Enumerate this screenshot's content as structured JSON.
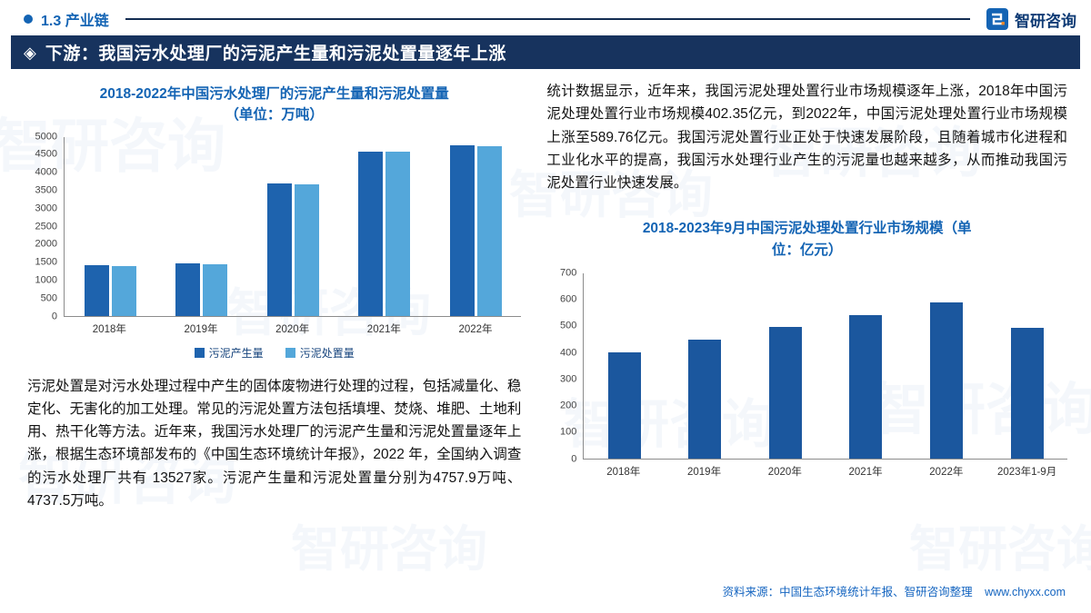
{
  "header": {
    "section": "1.3 产业链",
    "logo_text": "智研咨询"
  },
  "banner": {
    "icon": "◈",
    "title": "下游：我国污水处理厂的污泥产生量和污泥处置量逐年上涨"
  },
  "left": {
    "paragraph": "污泥处置是对污水处理过程中产生的固体废物进行处理的过程，包括减量化、稳定化、无害化的加工处理。常见的污泥处置方法包括填埋、焚烧、堆肥、土地利用、热干化等方法。近年来，我国污水处理厂的污泥产生量和污泥处置量逐年上涨，根据生态环境部发布的《中国生态环境统计年报》，2022 年，全国纳入调查的污水处理厂共有 13527家。污泥产生量和污泥处置量分别为4757.9万吨、4737.5万吨。"
  },
  "right": {
    "paragraph": "统计数据显示，近年来，我国污泥处理处置行业市场规模逐年上涨，2018年中国污泥处理处置行业市场规模402.35亿元，到2022年，中国污泥处理处置行业市场规模上涨至589.76亿元。我国污泥处置行业正处于快速发展阶段，且随着城市化进程和工业化水平的提高，我国污水处理行业产生的污泥量也越来越多，从而推动我国污泥处置行业快速发展。"
  },
  "footer": {
    "source": "资料来源：中国生态环境统计年报、智研咨询整理",
    "website": "www.chyxx.com"
  },
  "colors": {
    "accent_blue": "#1464b4",
    "banner_bg": "#17335e",
    "bar_dark": "#1e63ae",
    "bar_light": "#54a7da",
    "bar_navy": "#1b579e"
  },
  "watermark_text": "智研咨询",
  "chart_data": [
    {
      "type": "bar",
      "title": "2018-2022年中国污水处理厂的污泥产生量和污泥处置量（单位：万吨）",
      "categories": [
        "2018年",
        "2019年",
        "2020年",
        "2021年",
        "2022年"
      ],
      "series": [
        {
          "name": "污泥产生量",
          "color": "#1e63ae",
          "values": [
            1400,
            1460,
            3690,
            4590,
            4757.9
          ]
        },
        {
          "name": "污泥处置量",
          "color": "#54a7da",
          "values": [
            1375,
            1435,
            3670,
            4570,
            4737.5
          ]
        }
      ],
      "ylim": [
        0,
        5000
      ],
      "ytick": 500,
      "grid": false,
      "legend_show": true,
      "legend_position": "bottom"
    },
    {
      "type": "bar",
      "title": "2018-2023年9月中国污泥处理处置行业市场规模（单位：亿元）",
      "categories": [
        "2018年",
        "2019年",
        "2020年",
        "2021年",
        "2022年",
        "2023年1-9月"
      ],
      "series": [
        {
          "name": "",
          "color": "#1b579e",
          "values": [
            402.35,
            447,
            497,
            540,
            589.76,
            492
          ]
        }
      ],
      "ylim": [
        0,
        700
      ],
      "ytick": 100,
      "grid": false,
      "legend_show": false
    }
  ]
}
